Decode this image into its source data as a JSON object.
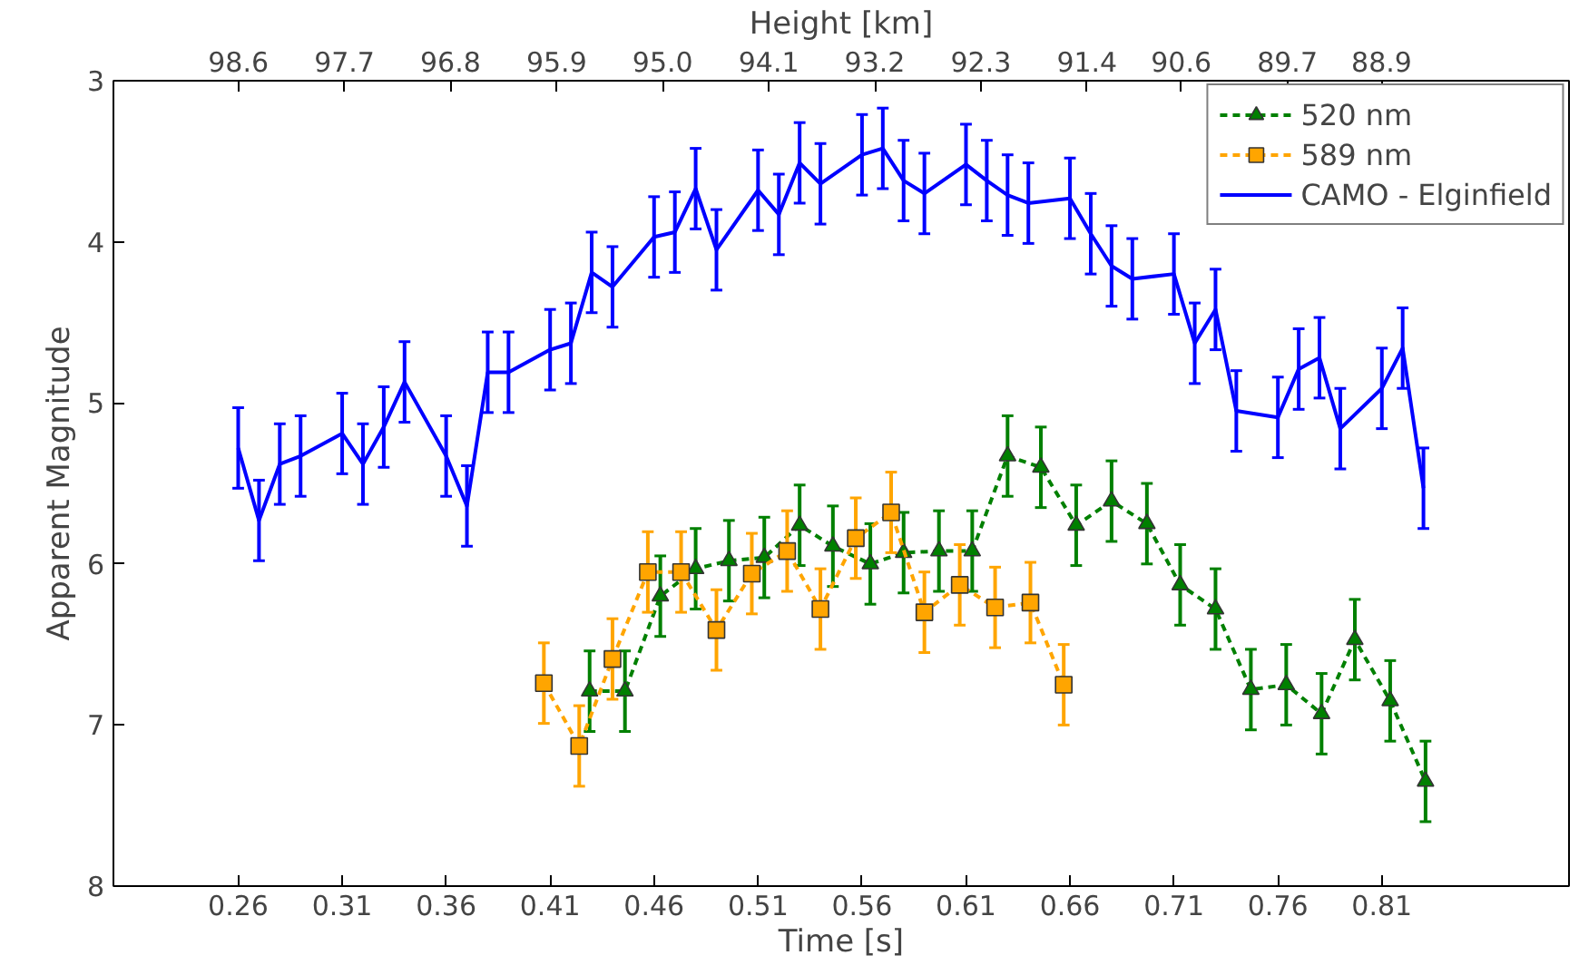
{
  "chart_data": {
    "type": "line",
    "xlabel": "Time [s]",
    "ylabel": "Apparent Magnitude",
    "x2label": "Height [km]",
    "xlim": [
      0.2,
      0.9
    ],
    "ylim": [
      8,
      3
    ],
    "xticks": [
      0.26,
      0.31,
      0.36,
      0.41,
      0.46,
      0.51,
      0.56,
      0.61,
      0.66,
      0.71,
      0.76,
      0.81
    ],
    "yticks": [
      3,
      4,
      5,
      6,
      7,
      8
    ],
    "x2lim": [
      99.66,
      87.31
    ],
    "x2ticks": [
      98.6,
      97.7,
      96.8,
      95.9,
      {
        "value": 95.0,
        "label": "95.0"
      },
      94.1,
      93.2,
      92.3,
      91.4,
      90.6,
      89.7,
      88.9
    ],
    "grid": false,
    "legend": "top right",
    "series": [
      {
        "name": "520 nm",
        "color": "#008000",
        "marker": "triangle",
        "line_style": "dashed",
        "x": [
          0.429,
          0.446,
          0.463,
          0.48,
          0.496,
          0.513,
          0.53,
          0.546,
          0.564,
          0.58,
          0.597,
          0.613,
          0.63,
          0.646,
          0.663,
          0.68,
          0.697,
          0.713,
          0.73,
          0.747,
          0.764,
          0.781,
          0.797,
          0.814,
          0.831
        ],
        "values": [
          6.79,
          6.79,
          6.2,
          6.03,
          5.98,
          5.96,
          5.76,
          5.89,
          6.0,
          5.93,
          5.92,
          5.92,
          5.33,
          5.4,
          5.76,
          5.61,
          5.75,
          6.13,
          6.28,
          6.78,
          6.75,
          6.93,
          6.47,
          6.85,
          7.35
        ],
        "errors": [
          0.25,
          0.25,
          0.25,
          0.25,
          0.25,
          0.25,
          0.25,
          0.25,
          0.25,
          0.25,
          0.25,
          0.25,
          0.25,
          0.25,
          0.25,
          0.25,
          0.25,
          0.25,
          0.25,
          0.25,
          0.25,
          0.25,
          0.25,
          0.25,
          0.25
        ]
      },
      {
        "name": "589 nm",
        "color": "#ffa500",
        "marker": "square",
        "line_style": "dashed",
        "x": [
          0.407,
          0.424,
          0.44,
          0.457,
          0.473,
          0.49,
          0.507,
          0.524,
          0.54,
          0.557,
          0.574,
          0.59,
          0.607,
          0.624,
          0.641,
          0.657
        ],
        "values": [
          6.74,
          7.13,
          6.59,
          6.05,
          6.05,
          6.41,
          6.06,
          5.92,
          6.28,
          5.84,
          5.68,
          6.3,
          6.13,
          6.27,
          6.24,
          6.75
        ],
        "errors": [
          0.25,
          0.25,
          0.25,
          0.25,
          0.25,
          0.25,
          0.25,
          0.25,
          0.25,
          0.25,
          0.25,
          0.25,
          0.25,
          0.25,
          0.25,
          0.25
        ]
      },
      {
        "name": "CAMO - Elginfield",
        "color": "#0000ff",
        "marker": "none",
        "line_style": "solid",
        "x": [
          0.26,
          0.27,
          0.28,
          0.29,
          0.31,
          0.32,
          0.33,
          0.34,
          0.36,
          0.37,
          0.38,
          0.39,
          0.41,
          0.42,
          0.43,
          0.44,
          0.46,
          0.47,
          0.48,
          0.49,
          0.51,
          0.52,
          0.53,
          0.54,
          0.56,
          0.57,
          0.58,
          0.59,
          0.61,
          0.62,
          0.63,
          0.64,
          0.66,
          0.67,
          0.68,
          0.69,
          0.71,
          0.72,
          0.73,
          0.74,
          0.76,
          0.77,
          0.78,
          0.79,
          0.81,
          0.82,
          0.83
        ],
        "values": [
          5.28,
          5.73,
          5.38,
          5.33,
          5.19,
          5.38,
          5.15,
          4.87,
          5.33,
          5.64,
          4.81,
          4.81,
          4.67,
          4.63,
          4.19,
          4.28,
          3.97,
          3.94,
          3.67,
          4.05,
          3.68,
          3.83,
          3.51,
          3.64,
          3.46,
          3.42,
          3.62,
          3.7,
          3.52,
          3.62,
          3.71,
          3.76,
          3.73,
          3.95,
          4.15,
          4.23,
          4.2,
          4.63,
          4.42,
          5.05,
          5.09,
          4.79,
          4.72,
          5.16,
          4.91,
          4.66,
          5.53
        ],
        "errors": [
          0.25,
          0.25,
          0.25,
          0.25,
          0.25,
          0.25,
          0.25,
          0.25,
          0.25,
          0.25,
          0.25,
          0.25,
          0.25,
          0.25,
          0.25,
          0.25,
          0.25,
          0.25,
          0.25,
          0.25,
          0.25,
          0.25,
          0.25,
          0.25,
          0.25,
          0.25,
          0.25,
          0.25,
          0.25,
          0.25,
          0.25,
          0.25,
          0.25,
          0.25,
          0.25,
          0.25,
          0.25,
          0.25,
          0.25,
          0.25,
          0.25,
          0.25,
          0.25,
          0.25,
          0.25,
          0.25,
          0.25
        ]
      }
    ]
  }
}
